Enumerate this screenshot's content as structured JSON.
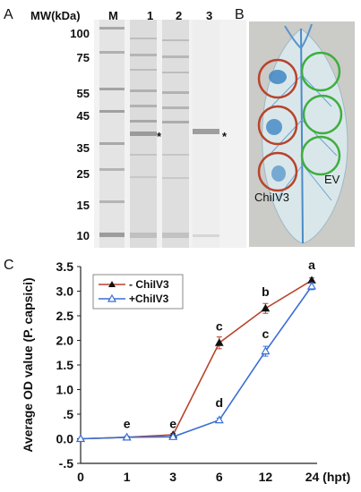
{
  "panels": {
    "a": "A",
    "b": "B",
    "c": "C"
  },
  "gel": {
    "mw_header": "MW(kDa)",
    "lanes": [
      "M",
      "1",
      "2",
      "3"
    ],
    "mw_ticks": [
      "100",
      "75",
      "55",
      "45",
      "35",
      "25",
      "15",
      "10"
    ],
    "mark_lane1": "*",
    "mark_lane3": "*"
  },
  "leaf": {
    "label_left": "ChiIV3",
    "label_right": "EV",
    "ring_colors": {
      "treated": "#b8432c",
      "control": "#3fae3f"
    }
  },
  "chart_data": {
    "type": "line",
    "ylabel": "Average OD value (P. capsici)",
    "ylim": [
      -0.5,
      3.5
    ],
    "yticks": [
      "-.5",
      "0.0",
      ".5",
      "1.0",
      "1.5",
      "2.0",
      "2.5",
      "3.0",
      "3.5"
    ],
    "xticks": [
      "0",
      "1",
      "3",
      "6",
      "12",
      "24 (hpt)"
    ],
    "x": [
      0,
      1,
      3,
      6,
      12,
      24
    ],
    "series": [
      {
        "name": "- ChiIV3",
        "color": "#b8432c",
        "marker": "filled-triangle",
        "values": [
          0.0,
          0.03,
          0.08,
          1.95,
          2.65,
          3.22
        ],
        "errors": [
          0.0,
          0.02,
          0.03,
          0.12,
          0.1,
          0.05
        ]
      },
      {
        "name": "+ChiIV3",
        "color": "#3a6fd4",
        "marker": "open-triangle",
        "values": [
          0.0,
          0.03,
          0.04,
          0.38,
          1.78,
          3.1
        ],
        "errors": [
          0.0,
          0.02,
          0.02,
          0.04,
          0.1,
          0.07
        ]
      }
    ],
    "letters": [
      {
        "x": 1,
        "y": 0.22,
        "text": "e"
      },
      {
        "x": 3,
        "y": 0.22,
        "text": "e"
      },
      {
        "x": 6,
        "y": 2.2,
        "text": "c"
      },
      {
        "x": 6,
        "y": 0.65,
        "text": "d"
      },
      {
        "x": 12,
        "y": 2.9,
        "text": "b"
      },
      {
        "x": 12,
        "y": 2.05,
        "text": "c"
      },
      {
        "x": 24,
        "y": 3.45,
        "text": "a"
      }
    ],
    "legend_position": "top-left"
  }
}
